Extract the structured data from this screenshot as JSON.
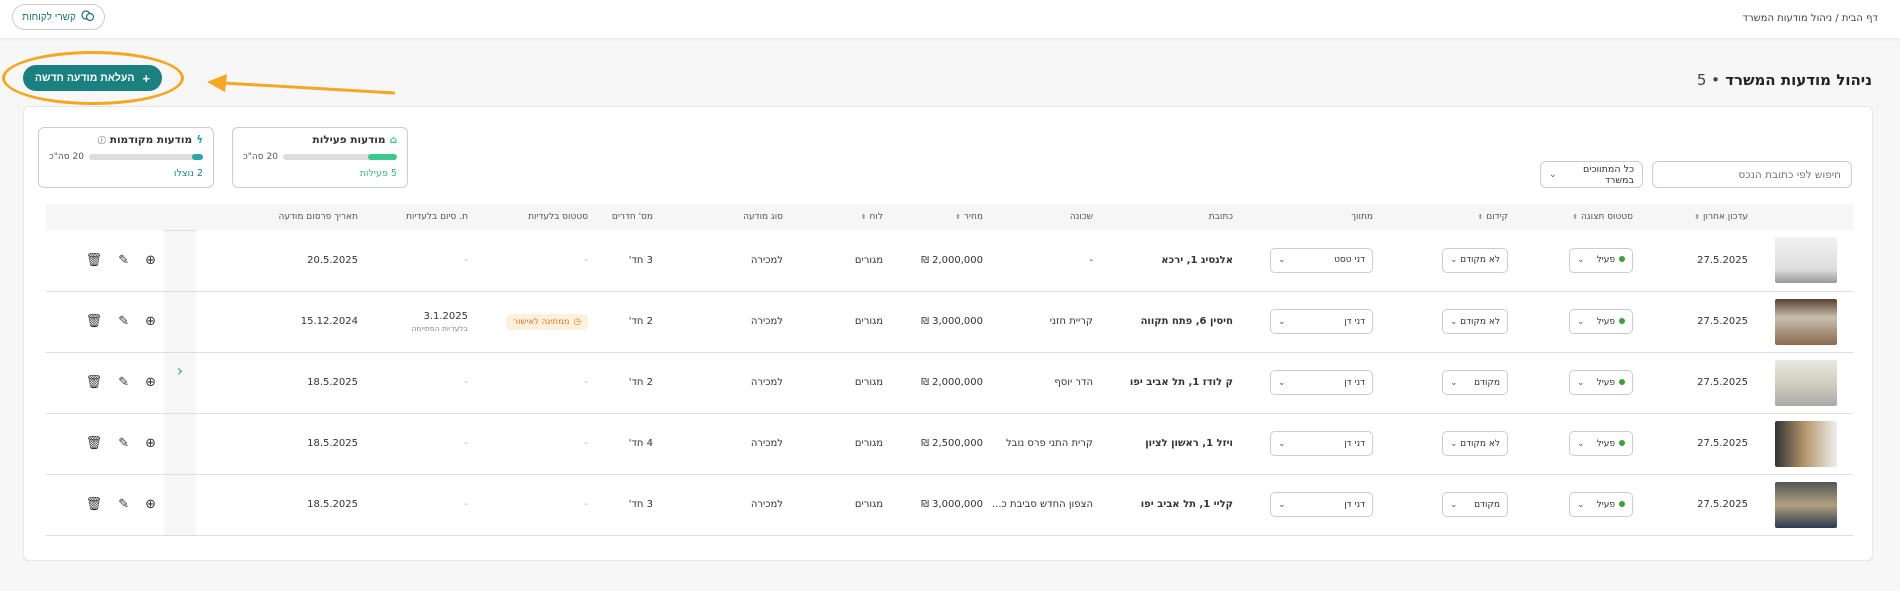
{
  "breadcrumb": {
    "home": "דף הבית",
    "separator": "/",
    "current": "ניהול מודעות המשרד"
  },
  "header": {
    "contact_label": "קשרי לקוחות",
    "contact_icon": "chat-bubbles-icon"
  },
  "upload_button": {
    "label": "העלאת מודעה חדשה",
    "icon": "plus-icon"
  },
  "annotation": {
    "color": "#f5a623"
  },
  "page_title": {
    "title": "ניהול מודעות המשרד",
    "count": "• 5"
  },
  "stats": [
    {
      "title": "מודעות פעילות",
      "icon": "house-star-icon",
      "total": "20 סה\"כ",
      "footer": "5 פעילות",
      "progress": 0.25,
      "color": "#3cc88a"
    },
    {
      "title": "מודעות מקודמות",
      "icon": "lightning-icon",
      "total": "20 סה\"כ",
      "footer": "2 נוצלו",
      "progress": 0.1,
      "color": "#2aa5a8",
      "info_icon": "info-icon"
    }
  ],
  "search": {
    "placeholder": "חיפוש לפי כתובת הנכס"
  },
  "agent_filter": {
    "value": "כל המתווכים במשרד"
  },
  "columns": [
    "",
    "עדכון אחרון",
    "סטטוס תצוגה",
    "קידום",
    "מתווך",
    "כתובת",
    "שכונה",
    "מחיר",
    "לוח",
    "סוג מודעה",
    "מס' חדרים",
    "סטטוס בלעדיות",
    "ת. סיום בלעדיות",
    "תאריך פרסום מודעה"
  ],
  "rows": [
    {
      "updated": "27.5.2025",
      "status": "פעיל",
      "promotion": "לא מקודם",
      "agent": "דני טסט",
      "address": "אלנסיג 1, ירכא",
      "neighborhood": "-",
      "price": "2,000,000 ₪",
      "board": "מגורים",
      "type": "למכירה",
      "rooms": "3 חד'",
      "excl_status": "-",
      "excl_end": "-",
      "excl_end_sub": "",
      "published": "20.5.2025"
    },
    {
      "updated": "27.5.2025",
      "status": "פעיל",
      "promotion": "לא מקודם",
      "agent": "דני דן",
      "address": "חיסין 6, פתח תקווה",
      "neighborhood": "קריית חזני",
      "price": "3,000,000 ₪",
      "board": "מגורים",
      "type": "למכירה",
      "rooms": "2 חד'",
      "excl_status": "ממתינה לאישור",
      "excl_end": "3.1.2025",
      "excl_end_sub": "בלעדיות הסתיימה",
      "published": "15.12.2024"
    },
    {
      "updated": "27.5.2025",
      "status": "פעיל",
      "promotion": "מקודם",
      "agent": "דני דן",
      "address": "ק לודז 1, תל אביב יפו",
      "neighborhood": "הדר יוסף",
      "price": "2,000,000 ₪",
      "board": "מגורים",
      "type": "למכירה",
      "rooms": "2 חד'",
      "excl_status": "-",
      "excl_end": "-",
      "excl_end_sub": "",
      "published": "18.5.2025"
    },
    {
      "updated": "27.5.2025",
      "status": "פעיל",
      "promotion": "לא מקודם",
      "agent": "דני דן",
      "address": "ויזל 1, ראשון לציון",
      "neighborhood": "קרית התני פרס נובל",
      "price": "2,500,000 ₪",
      "board": "מגורים",
      "type": "למכירה",
      "rooms": "4 חד'",
      "excl_status": "-",
      "excl_end": "-",
      "excl_end_sub": "",
      "published": "18.5.2025"
    },
    {
      "updated": "27.5.2025",
      "status": "פעיל",
      "promotion": "מקודם",
      "agent": "דני דן",
      "address": "קליי 1, תל אביב יפו",
      "neighborhood": "הצפון החדש סביבת כ...",
      "price": "3,000,000 ₪",
      "board": "מגורים",
      "type": "למכירה",
      "rooms": "3 חד'",
      "excl_status": "-",
      "excl_end": "-",
      "excl_end_sub": "",
      "published": "18.5.2025"
    }
  ],
  "colors": {
    "primary": "#1b8080",
    "active_dot": "#3aa03a",
    "pending_bg": "#fdf0dc",
    "pending_text": "#e07a20"
  }
}
